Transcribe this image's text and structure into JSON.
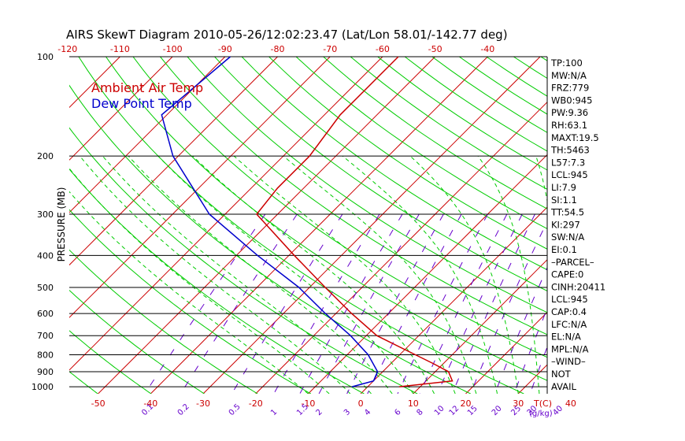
{
  "title": "AIRS SkewT Diagram 2010-05-26/12:02:23.47 (Lat/Lon 58.01/-142.77 deg)",
  "ylabel": "PRESSURE (MB)",
  "legend": [
    "Ambient Air Temp",
    "Dew Point Temp"
  ],
  "colors": {
    "air": "#cc0000",
    "dew": "#0000cc",
    "isotherm": "#cc0000",
    "dry_adiabat": "#00cc00",
    "moist_adiabat": "#00cc00",
    "mixing_ratio": "#6600cc",
    "isobar": "#000000",
    "top_axis": "#cc0000",
    "bottom_axis": "#cc0000"
  },
  "top_ticks": [
    "-120",
    "-110",
    "-100",
    "-90",
    "-80",
    "-70",
    "-60",
    "-50",
    "-40"
  ],
  "bottom_temp_ticks": [
    "-50",
    "-40",
    "-30",
    "-20",
    "-10",
    "0",
    "10",
    "20",
    "30",
    "40"
  ],
  "bottom_unit": "T(C)",
  "mixing_ratio_labels": [
    "0.1",
    "0.2",
    "0.5",
    "1",
    "1.5",
    "2",
    "3",
    "4",
    "6",
    "8",
    "10",
    "12",
    "15",
    "20",
    "25",
    "30",
    "40"
  ],
  "mixing_ratio_unit": "(g/kg)",
  "pressure_ticks": [
    "100",
    "200",
    "300",
    "400",
    "500",
    "600",
    "700",
    "800",
    "900",
    "1000"
  ],
  "indices": [
    "TP:100",
    "MW:N/A",
    "FRZ:779",
    "WB0:945",
    "PW:9.36",
    "RH:63.1",
    "MAXT:19.5",
    "TH:5463",
    "L57:7.3",
    "LCL:945",
    "LI:7.9",
    "SI:1.1",
    "TT:54.5",
    "KI:297",
    "SW:N/A",
    "EI:0.1",
    "–PARCEL–",
    "CAPE:0",
    "CINH:20411",
    "LCL:945",
    "CAP:0.4",
    "LFC:N/A",
    "EL:N/A",
    "MPL:N/A",
    "–WIND–",
    "NOT",
    "AVAIL"
  ],
  "chart_data": {
    "type": "line",
    "title": "AIRS SkewT Diagram 2010-05-26/12:02:23.47 (Lat/Lon 58.01/-142.77 deg)",
    "ylabel": "PRESSURE (MB)",
    "xlabel": "T(C)",
    "y_scale": "log",
    "ylim": [
      1050,
      100
    ],
    "series": [
      {
        "name": "Ambient Air Temp",
        "points": [
          [
            1000,
            6
          ],
          [
            960,
            15
          ],
          [
            900,
            12.5
          ],
          [
            850,
            8
          ],
          [
            800,
            3
          ],
          [
            700,
            -8
          ],
          [
            600,
            -17
          ],
          [
            500,
            -27
          ],
          [
            400,
            -39
          ],
          [
            300,
            -54
          ],
          [
            250,
            -55
          ],
          [
            200,
            -55
          ],
          [
            150,
            -57
          ],
          [
            100,
            -57
          ]
        ]
      },
      {
        "name": "Dew Point Temp",
        "points": [
          [
            1000,
            -3
          ],
          [
            960,
            0
          ],
          [
            900,
            -1
          ],
          [
            800,
            -6
          ],
          [
            700,
            -13
          ],
          [
            600,
            -22
          ],
          [
            500,
            -32
          ],
          [
            400,
            -46
          ],
          [
            300,
            -63
          ],
          [
            200,
            -81
          ],
          [
            150,
            -91
          ],
          [
            100,
            -89
          ]
        ]
      }
    ]
  }
}
